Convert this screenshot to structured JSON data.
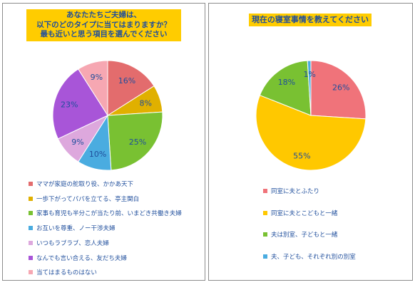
{
  "chart_data": [
    {
      "type": "pie",
      "title": [
        "あなたたちご夫婦は、",
        "以下のどのタイプに当てはまりますか？",
        "最も近いと思う項目を選んでください"
      ],
      "series": [
        {
          "name": "ママが家庭の舵取り役、かかあ天下",
          "value": 16,
          "label": "16%",
          "color": "#e36c6d"
        },
        {
          "name": "一歩下がってパパを立てる、亭主関白",
          "value": 8,
          "label": "8%",
          "color": "#e0b000"
        },
        {
          "name": "家事も育児も半分こが当たり前、いまどき共働き夫婦",
          "value": 25,
          "label": "25%",
          "color": "#79c132"
        },
        {
          "name": "お互いを尊重、ノー干渉夫婦",
          "value": 10,
          "label": "10%",
          "color": "#4aace0"
        },
        {
          "name": "いつもラブラブ、恋人夫婦",
          "value": 9,
          "label": "9%",
          "color": "#dda8dd"
        },
        {
          "name": "なんでも言い合える、友だち夫婦",
          "value": 23,
          "label": "23%",
          "color": "#a855d8"
        },
        {
          "name": "当てはまるものはない",
          "value": 9,
          "label": "9%",
          "color": "#f6a7b2"
        }
      ]
    },
    {
      "type": "pie",
      "title": [
        "現在の寝室事情を教えてください"
      ],
      "series": [
        {
          "name": "同室に夫とふたり",
          "value": 26,
          "label": "26%",
          "color": "#f0737a"
        },
        {
          "name": "同室に夫とこどもと一緒",
          "value": 55,
          "label": "55%",
          "color": "#ffc800"
        },
        {
          "name": "夫は別室、子どもと一緒",
          "value": 18,
          "label": "18%",
          "color": "#79c132"
        },
        {
          "name": "夫、子ども、それぞれ別の別室",
          "value": 1,
          "label": "1%",
          "color": "#4aace0"
        }
      ]
    }
  ]
}
